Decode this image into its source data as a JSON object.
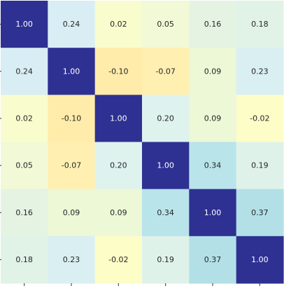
{
  "chart_data": {
    "type": "heatmap",
    "title": "",
    "xlabel": "",
    "ylabel": "",
    "rows": 6,
    "cols": 6,
    "value_range": [
      -0.1,
      1.0
    ],
    "colormap": "YlGnBu",
    "colorbar": false,
    "grid": false,
    "values": [
      [
        1.0,
        0.24,
        0.02,
        0.05,
        0.16,
        0.18
      ],
      [
        0.24,
        1.0,
        -0.1,
        -0.07,
        0.09,
        0.23
      ],
      [
        0.02,
        -0.1,
        1.0,
        0.2,
        0.09,
        -0.02
      ],
      [
        0.05,
        -0.07,
        0.2,
        1.0,
        0.34,
        0.19
      ],
      [
        0.16,
        0.09,
        0.09,
        0.34,
        1.0,
        0.37
      ],
      [
        0.18,
        0.23,
        -0.02,
        0.19,
        0.37,
        1.0
      ]
    ],
    "labels": [
      [
        "1.00",
        "0.24",
        "0.02",
        "0.05",
        "0.16",
        "0.18"
      ],
      [
        "0.24",
        "1.00",
        "-0.10",
        "-0.07",
        "0.09",
        "0.23"
      ],
      [
        "0.02",
        "-0.10",
        "1.00",
        "0.20",
        "0.09",
        "-0.02"
      ],
      [
        "0.05",
        "-0.07",
        "0.20",
        "1.00",
        "0.34",
        "0.19"
      ],
      [
        "0.16",
        "0.09",
        "0.09",
        "0.34",
        "1.00",
        "0.37"
      ],
      [
        "0.18",
        "0.23",
        "-0.02",
        "0.19",
        "0.37",
        "1.00"
      ]
    ],
    "colors": {
      "diagonal": "#2e3192",
      "text_dark": "#262626",
      "text_light": "#ffffff"
    }
  }
}
